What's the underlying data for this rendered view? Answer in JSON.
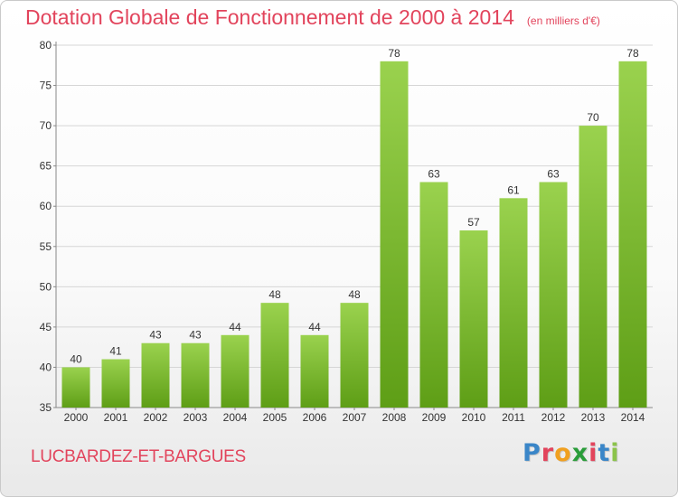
{
  "title": {
    "main": "Dotation Globale de Fonctionnement de 2000 à 2014",
    "unit": "(en milliers d'€)"
  },
  "commune": "LUCBARDEZ-ET-BARGUES",
  "logo": {
    "text": "Proxiti",
    "colors": [
      "#3a86c8",
      "#e2445c",
      "#f0a020",
      "#2a9d3a",
      "#e2445c",
      "#3a86c8",
      "#8bc34a"
    ]
  },
  "colors": {
    "bar_top": "#9ad24e",
    "bar_bottom": "#5e9e16",
    "title": "#e2445c",
    "grid": "#d6d6d6"
  },
  "chart_data": {
    "type": "bar",
    "categories": [
      "2000",
      "2001",
      "2002",
      "2003",
      "2004",
      "2005",
      "2006",
      "2007",
      "2008",
      "2009",
      "2010",
      "2011",
      "2012",
      "2013",
      "2014"
    ],
    "values": [
      40,
      41,
      43,
      43,
      44,
      48,
      44,
      48,
      78,
      63,
      57,
      61,
      63,
      70,
      78
    ],
    "ylim": [
      35,
      80
    ],
    "yticks": [
      35,
      40,
      45,
      50,
      55,
      60,
      65,
      70,
      75,
      80
    ],
    "grid": true,
    "data_labels": true
  }
}
